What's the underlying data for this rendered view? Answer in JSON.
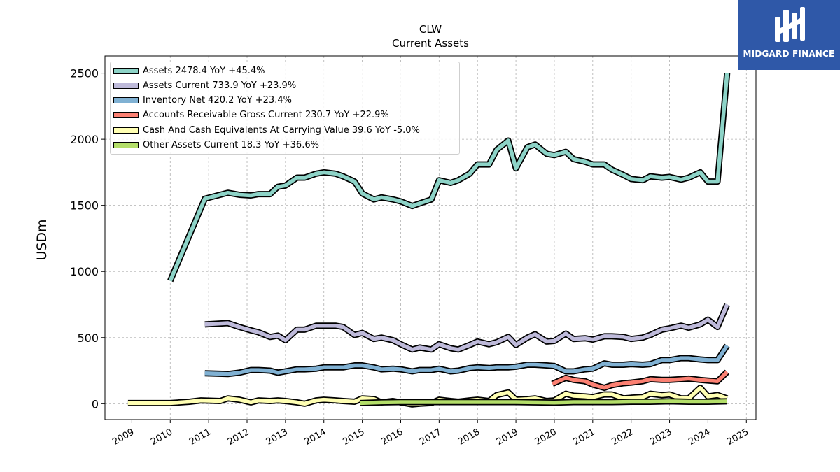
{
  "chart_data": {
    "type": "line",
    "title": "CLW",
    "subtitle": "Current  Assets",
    "ylabel": "USDm",
    "xlabel": "",
    "xlim": [
      2008.3,
      2025.25
    ],
    "ylim": [
      -120,
      2630
    ],
    "x_ticks": [
      "2009",
      "2010",
      "2011",
      "2012",
      "2013",
      "2014",
      "2015",
      "2016",
      "2017",
      "2018",
      "2019",
      "2020",
      "2021",
      "2022",
      "2023",
      "2024",
      "2025"
    ],
    "y_ticks": [
      "0",
      "500",
      "1000",
      "1500",
      "2000",
      "2500"
    ],
    "grid": true,
    "legend_position": "top-left",
    "series": [
      {
        "name": "Assets",
        "legend": "Assets  2478.4 YoY +45.4%",
        "color": "#8dd3c7",
        "points": [
          [
            2010.0,
            930
          ],
          [
            2010.9,
            1550
          ],
          [
            2011.5,
            1595
          ],
          [
            2011.8,
            1580
          ],
          [
            2012.1,
            1575
          ],
          [
            2012.3,
            1585
          ],
          [
            2012.6,
            1585
          ],
          [
            2012.8,
            1640
          ],
          [
            2013.0,
            1650
          ],
          [
            2013.3,
            1710
          ],
          [
            2013.5,
            1710
          ],
          [
            2013.8,
            1740
          ],
          [
            2014.0,
            1750
          ],
          [
            2014.3,
            1740
          ],
          [
            2014.5,
            1720
          ],
          [
            2014.8,
            1680
          ],
          [
            2015.0,
            1590
          ],
          [
            2015.3,
            1545
          ],
          [
            2015.5,
            1560
          ],
          [
            2015.8,
            1545
          ],
          [
            2016.0,
            1530
          ],
          [
            2016.3,
            1495
          ],
          [
            2016.5,
            1515
          ],
          [
            2016.8,
            1545
          ],
          [
            2017.0,
            1690
          ],
          [
            2017.3,
            1670
          ],
          [
            2017.5,
            1690
          ],
          [
            2017.8,
            1740
          ],
          [
            2018.0,
            1810
          ],
          [
            2018.3,
            1810
          ],
          [
            2018.5,
            1920
          ],
          [
            2018.8,
            1990
          ],
          [
            2019.0,
            1780
          ],
          [
            2019.3,
            1940
          ],
          [
            2019.5,
            1960
          ],
          [
            2019.8,
            1890
          ],
          [
            2020.0,
            1880
          ],
          [
            2020.3,
            1905
          ],
          [
            2020.5,
            1850
          ],
          [
            2020.8,
            1830
          ],
          [
            2021.0,
            1810
          ],
          [
            2021.3,
            1810
          ],
          [
            2021.5,
            1770
          ],
          [
            2021.8,
            1730
          ],
          [
            2022.0,
            1700
          ],
          [
            2022.3,
            1690
          ],
          [
            2022.5,
            1720
          ],
          [
            2022.8,
            1710
          ],
          [
            2023.0,
            1715
          ],
          [
            2023.3,
            1695
          ],
          [
            2023.5,
            1710
          ],
          [
            2023.8,
            1750
          ],
          [
            2024.0,
            1680
          ],
          [
            2024.25,
            1680
          ],
          [
            2024.5,
            2500
          ]
        ]
      },
      {
        "name": "Assets Current",
        "legend": "Assets Current  733.9 YoY +23.9%",
        "color": "#bebada",
        "points": [
          [
            2010.9,
            600
          ],
          [
            2011.5,
            610
          ],
          [
            2011.8,
            580
          ],
          [
            2012.1,
            555
          ],
          [
            2012.3,
            540
          ],
          [
            2012.6,
            505
          ],
          [
            2012.8,
            515
          ],
          [
            2013.0,
            480
          ],
          [
            2013.3,
            560
          ],
          [
            2013.5,
            560
          ],
          [
            2013.8,
            590
          ],
          [
            2014.0,
            590
          ],
          [
            2014.3,
            590
          ],
          [
            2014.5,
            580
          ],
          [
            2014.8,
            520
          ],
          [
            2015.0,
            535
          ],
          [
            2015.3,
            490
          ],
          [
            2015.5,
            500
          ],
          [
            2015.8,
            480
          ],
          [
            2016.0,
            450
          ],
          [
            2016.3,
            410
          ],
          [
            2016.5,
            425
          ],
          [
            2016.8,
            410
          ],
          [
            2017.0,
            450
          ],
          [
            2017.3,
            420
          ],
          [
            2017.5,
            410
          ],
          [
            2017.8,
            445
          ],
          [
            2018.0,
            470
          ],
          [
            2018.3,
            450
          ],
          [
            2018.5,
            465
          ],
          [
            2018.8,
            505
          ],
          [
            2019.0,
            445
          ],
          [
            2019.3,
            500
          ],
          [
            2019.5,
            525
          ],
          [
            2019.8,
            470
          ],
          [
            2020.0,
            475
          ],
          [
            2020.3,
            530
          ],
          [
            2020.5,
            490
          ],
          [
            2020.8,
            495
          ],
          [
            2021.0,
            485
          ],
          [
            2021.3,
            510
          ],
          [
            2021.5,
            510
          ],
          [
            2021.8,
            505
          ],
          [
            2022.0,
            490
          ],
          [
            2022.3,
            500
          ],
          [
            2022.5,
            520
          ],
          [
            2022.8,
            560
          ],
          [
            2023.0,
            570
          ],
          [
            2023.3,
            590
          ],
          [
            2023.5,
            575
          ],
          [
            2023.8,
            600
          ],
          [
            2024.0,
            635
          ],
          [
            2024.25,
            580
          ],
          [
            2024.5,
            750
          ]
        ]
      },
      {
        "name": "Inventory Net",
        "legend": "Inventory Net  420.2 YoY +23.4%",
        "color": "#80b1d3",
        "points": [
          [
            2010.9,
            230
          ],
          [
            2011.5,
            225
          ],
          [
            2011.8,
            235
          ],
          [
            2012.1,
            255
          ],
          [
            2012.3,
            255
          ],
          [
            2012.6,
            250
          ],
          [
            2012.8,
            235
          ],
          [
            2013.0,
            245
          ],
          [
            2013.3,
            260
          ],
          [
            2013.5,
            260
          ],
          [
            2013.8,
            265
          ],
          [
            2014.0,
            275
          ],
          [
            2014.3,
            275
          ],
          [
            2014.5,
            275
          ],
          [
            2014.8,
            290
          ],
          [
            2015.0,
            290
          ],
          [
            2015.3,
            275
          ],
          [
            2015.5,
            260
          ],
          [
            2015.8,
            265
          ],
          [
            2016.0,
            260
          ],
          [
            2016.3,
            245
          ],
          [
            2016.5,
            255
          ],
          [
            2016.8,
            255
          ],
          [
            2017.0,
            265
          ],
          [
            2017.3,
            245
          ],
          [
            2017.5,
            250
          ],
          [
            2017.8,
            270
          ],
          [
            2018.0,
            275
          ],
          [
            2018.3,
            270
          ],
          [
            2018.5,
            275
          ],
          [
            2018.8,
            275
          ],
          [
            2019.0,
            280
          ],
          [
            2019.3,
            295
          ],
          [
            2019.5,
            295
          ],
          [
            2019.8,
            290
          ],
          [
            2020.0,
            285
          ],
          [
            2020.3,
            245
          ],
          [
            2020.5,
            245
          ],
          [
            2020.8,
            260
          ],
          [
            2021.0,
            265
          ],
          [
            2021.3,
            305
          ],
          [
            2021.5,
            295
          ],
          [
            2021.8,
            295
          ],
          [
            2022.0,
            300
          ],
          [
            2022.3,
            295
          ],
          [
            2022.5,
            300
          ],
          [
            2022.8,
            330
          ],
          [
            2023.0,
            330
          ],
          [
            2023.3,
            345
          ],
          [
            2023.5,
            345
          ],
          [
            2023.8,
            335
          ],
          [
            2024.0,
            330
          ],
          [
            2024.25,
            330
          ],
          [
            2024.5,
            440
          ]
        ]
      },
      {
        "name": "Accounts Receivable Gross Current",
        "legend": "Accounts Receivable Gross Current  230.7 YoY +22.9%",
        "color": "#fb8072",
        "points": [
          [
            2019.95,
            150
          ],
          [
            2020.3,
            195
          ],
          [
            2020.5,
            180
          ],
          [
            2020.8,
            170
          ],
          [
            2021.0,
            145
          ],
          [
            2021.3,
            120
          ],
          [
            2021.5,
            140
          ],
          [
            2021.8,
            155
          ],
          [
            2022.0,
            160
          ],
          [
            2022.3,
            170
          ],
          [
            2022.5,
            185
          ],
          [
            2022.8,
            180
          ],
          [
            2023.0,
            180
          ],
          [
            2023.3,
            185
          ],
          [
            2023.5,
            190
          ],
          [
            2023.8,
            180
          ],
          [
            2024.0,
            175
          ],
          [
            2024.25,
            170
          ],
          [
            2024.5,
            240
          ]
        ]
      },
      {
        "name": "Cash And Cash Equivalents At Carrying Value",
        "legend": "Cash And Cash Equivalents At Carrying Value  39.6 YoY -5.0%",
        "color": "#ffffb3",
        "points": [
          [
            2008.9,
            5
          ],
          [
            2010.0,
            5
          ],
          [
            2010.5,
            15
          ],
          [
            2010.8,
            25
          ],
          [
            2011.3,
            20
          ],
          [
            2011.5,
            40
          ],
          [
            2011.8,
            30
          ],
          [
            2012.1,
            10
          ],
          [
            2012.3,
            25
          ],
          [
            2012.6,
            20
          ],
          [
            2012.8,
            25
          ],
          [
            2013.0,
            20
          ],
          [
            2013.3,
            10
          ],
          [
            2013.5,
            0
          ],
          [
            2013.8,
            25
          ],
          [
            2014.0,
            30
          ],
          [
            2014.3,
            25
          ],
          [
            2014.5,
            20
          ],
          [
            2014.8,
            15
          ],
          [
            2015.0,
            40
          ],
          [
            2015.3,
            35
          ],
          [
            2015.5,
            10
          ],
          [
            2015.8,
            20
          ],
          [
            2016.0,
            10
          ],
          [
            2016.3,
            -5
          ],
          [
            2016.5,
            0
          ],
          [
            2016.8,
            5
          ],
          [
            2017.0,
            30
          ],
          [
            2017.3,
            20
          ],
          [
            2017.5,
            15
          ],
          [
            2017.8,
            25
          ],
          [
            2018.0,
            30
          ],
          [
            2018.3,
            20
          ],
          [
            2018.5,
            65
          ],
          [
            2018.8,
            85
          ],
          [
            2019.0,
            30
          ],
          [
            2019.3,
            35
          ],
          [
            2019.5,
            40
          ],
          [
            2019.8,
            20
          ],
          [
            2020.0,
            25
          ],
          [
            2020.3,
            75
          ],
          [
            2020.5,
            60
          ],
          [
            2020.8,
            55
          ],
          [
            2021.0,
            50
          ],
          [
            2021.3,
            70
          ],
          [
            2021.5,
            70
          ],
          [
            2021.8,
            40
          ],
          [
            2022.0,
            45
          ],
          [
            2022.3,
            50
          ],
          [
            2022.5,
            75
          ],
          [
            2022.8,
            65
          ],
          [
            2023.0,
            70
          ],
          [
            2023.3,
            40
          ],
          [
            2023.5,
            40
          ],
          [
            2023.8,
            120
          ],
          [
            2024.0,
            55
          ],
          [
            2024.25,
            65
          ],
          [
            2024.5,
            40
          ]
        ]
      },
      {
        "name": "Other Assets Current",
        "legend": "Other Assets Current  18.3 YoY +36.6%",
        "color": "#b3de69",
        "points": [
          [
            2014.95,
            5
          ],
          [
            2015.5,
            10
          ],
          [
            2016.0,
            12
          ],
          [
            2016.5,
            12
          ],
          [
            2017.0,
            12
          ],
          [
            2017.5,
            12
          ],
          [
            2018.0,
            12
          ],
          [
            2018.5,
            12
          ],
          [
            2019.0,
            12
          ],
          [
            2019.5,
            10
          ],
          [
            2020.0,
            8
          ],
          [
            2020.5,
            12
          ],
          [
            2021.0,
            12
          ],
          [
            2021.5,
            12
          ],
          [
            2022.0,
            15
          ],
          [
            2022.5,
            15
          ],
          [
            2023.0,
            18
          ],
          [
            2023.5,
            15
          ],
          [
            2024.0,
            15
          ],
          [
            2024.5,
            18
          ]
        ]
      }
    ]
  }
}
